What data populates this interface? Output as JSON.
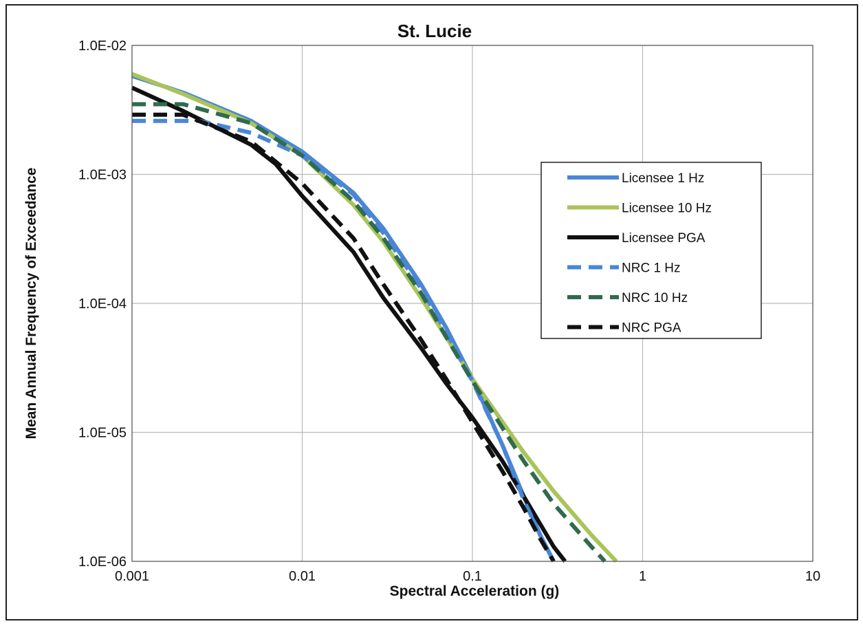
{
  "chart_data": {
    "type": "line",
    "title": "St. Lucie",
    "xlabel": "Spectral Acceleration (g)",
    "ylabel": "Mean Annual Frequency of Exceedance",
    "x_scale": "log",
    "y_scale": "log",
    "xlim": [
      0.001,
      10
    ],
    "ylim": [
      1e-06,
      0.01
    ],
    "x_ticks": [
      {
        "value": 0.001,
        "label": "0.001"
      },
      {
        "value": 0.01,
        "label": "0.01"
      },
      {
        "value": 0.1,
        "label": "0.1"
      },
      {
        "value": 1,
        "label": "1"
      },
      {
        "value": 10,
        "label": "10"
      }
    ],
    "y_ticks": [
      {
        "value": 0.01,
        "label": "1.0E-02"
      },
      {
        "value": 0.001,
        "label": "1.0E-03"
      },
      {
        "value": 0.0001,
        "label": "1.0E-04"
      },
      {
        "value": 1e-05,
        "label": "1.0E-05"
      },
      {
        "value": 1e-06,
        "label": "1.0E-06"
      }
    ],
    "grid": true,
    "legend_position": "right",
    "series": [
      {
        "name": "Licensee 1 Hz",
        "color": "#4a86d8",
        "dash": "solid",
        "points": [
          [
            0.001,
            0.0058
          ],
          [
            0.002,
            0.0043
          ],
          [
            0.005,
            0.0026
          ],
          [
            0.01,
            0.0015
          ],
          [
            0.02,
            0.00072
          ],
          [
            0.03,
            0.00038
          ],
          [
            0.05,
            0.00014
          ],
          [
            0.07,
            6.5e-05
          ],
          [
            0.1,
            2.6e-05
          ],
          [
            0.15,
            8e-06
          ],
          [
            0.2,
            3.2e-06
          ],
          [
            0.25,
            1.6e-06
          ],
          [
            0.3,
            1e-06
          ]
        ]
      },
      {
        "name": "Licensee 10 Hz",
        "color": "#a9c45a",
        "dash": "solid",
        "points": [
          [
            0.001,
            0.006
          ],
          [
            0.002,
            0.0042
          ],
          [
            0.005,
            0.0025
          ],
          [
            0.01,
            0.0014
          ],
          [
            0.02,
            0.00058
          ],
          [
            0.03,
            0.0003
          ],
          [
            0.05,
            0.00011
          ],
          [
            0.07,
            5.5e-05
          ],
          [
            0.1,
            2.6e-05
          ],
          [
            0.2,
            7e-06
          ],
          [
            0.3,
            3.5e-06
          ],
          [
            0.5,
            1.6e-06
          ],
          [
            0.7,
            1e-06
          ]
        ]
      },
      {
        "name": "Licensee PGA",
        "color": "#111111",
        "dash": "solid",
        "points": [
          [
            0.001,
            0.0047
          ],
          [
            0.002,
            0.0031
          ],
          [
            0.005,
            0.0017
          ],
          [
            0.007,
            0.0012
          ],
          [
            0.01,
            0.00068
          ],
          [
            0.02,
            0.00025
          ],
          [
            0.03,
            0.00011
          ],
          [
            0.05,
            4.5e-05
          ],
          [
            0.07,
            2.4e-05
          ],
          [
            0.1,
            1.3e-05
          ],
          [
            0.15,
            6e-06
          ],
          [
            0.2,
            3.2e-06
          ],
          [
            0.3,
            1.3e-06
          ],
          [
            0.35,
            1e-06
          ]
        ]
      },
      {
        "name": "NRC 1 Hz",
        "color": "#4a86d8",
        "dash": "dashed",
        "points": [
          [
            0.001,
            0.0026
          ],
          [
            0.0025,
            0.0026
          ],
          [
            0.005,
            0.0021
          ],
          [
            0.01,
            0.0014
          ],
          [
            0.02,
            0.0007
          ],
          [
            0.03,
            0.00035
          ],
          [
            0.05,
            0.00013
          ],
          [
            0.07,
            6e-05
          ],
          [
            0.1,
            2.5e-05
          ],
          [
            0.15,
            8e-06
          ],
          [
            0.2,
            3e-06
          ],
          [
            0.25,
            1.6e-06
          ],
          [
            0.3,
            1e-06
          ]
        ]
      },
      {
        "name": "NRC 10 Hz",
        "color": "#2e6b4f",
        "dash": "dashed",
        "points": [
          [
            0.001,
            0.0035
          ],
          [
            0.002,
            0.0035
          ],
          [
            0.005,
            0.0025
          ],
          [
            0.01,
            0.0014
          ],
          [
            0.02,
            0.00062
          ],
          [
            0.03,
            0.00032
          ],
          [
            0.05,
            0.00012
          ],
          [
            0.07,
            5.5e-05
          ],
          [
            0.1,
            2.5e-05
          ],
          [
            0.2,
            6e-06
          ],
          [
            0.3,
            2.8e-06
          ],
          [
            0.5,
            1.3e-06
          ],
          [
            0.6,
            1e-06
          ]
        ]
      },
      {
        "name": "NRC PGA",
        "color": "#111111",
        "dash": "dashed",
        "points": [
          [
            0.001,
            0.0029
          ],
          [
            0.002,
            0.0029
          ],
          [
            0.005,
            0.0018
          ],
          [
            0.01,
            0.00085
          ],
          [
            0.02,
            0.00032
          ],
          [
            0.03,
            0.00014
          ],
          [
            0.05,
            5.2e-05
          ],
          [
            0.07,
            2.6e-05
          ],
          [
            0.1,
            1.2e-05
          ],
          [
            0.15,
            5e-06
          ],
          [
            0.2,
            2.6e-06
          ],
          [
            0.25,
            1.5e-06
          ],
          [
            0.3,
            1e-06
          ]
        ]
      }
    ]
  }
}
